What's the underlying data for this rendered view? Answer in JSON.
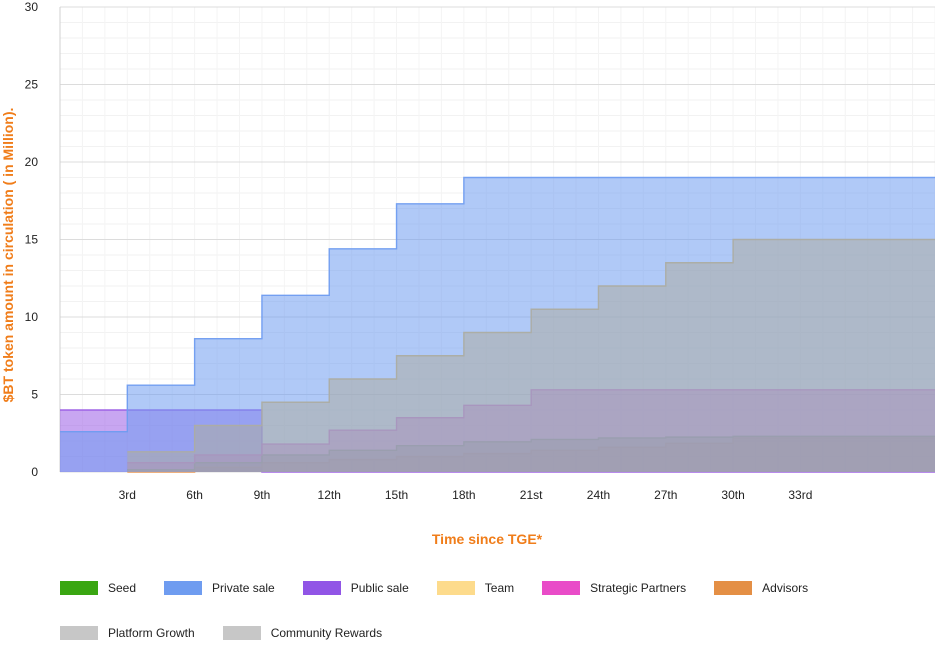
{
  "chart_data": {
    "type": "area",
    "xlabel": "Time since TGE*",
    "ylabel": "$BT token amount in circulation ( in Million).",
    "xlim": [
      0,
      39
    ],
    "ylim": [
      0,
      30
    ],
    "y_ticks": [
      0,
      5,
      10,
      15,
      20,
      25,
      30
    ],
    "x_tick_values": [
      3,
      6,
      9,
      12,
      15,
      18,
      21,
      24,
      27,
      30,
      33
    ],
    "x_tick_labels": [
      "3rd",
      "6th",
      "9th",
      "12th",
      "15th",
      "18th",
      "21st",
      "24th",
      "27th",
      "30th",
      "33rd"
    ],
    "grid": true,
    "series": [
      {
        "name": "Public sale",
        "color": "#9b5de5",
        "points": [
          [
            0,
            4.0
          ],
          [
            9,
            4.0
          ],
          [
            9,
            0
          ],
          [
            39,
            0
          ]
        ]
      },
      {
        "name": "Advisors",
        "color": "#e8914a",
        "points": [
          [
            3,
            0
          ],
          [
            6,
            0.3
          ],
          [
            9,
            0.6
          ],
          [
            12,
            0.8
          ],
          [
            15,
            1.0
          ],
          [
            18,
            1.2
          ],
          [
            21,
            1.4
          ],
          [
            24,
            1.6
          ],
          [
            27,
            1.85
          ],
          [
            30,
            2.2
          ],
          [
            39,
            2.2
          ]
        ]
      },
      {
        "name": "Seed",
        "color": "#40b020",
        "points": [
          [
            3,
            0.15
          ],
          [
            6,
            0.6
          ],
          [
            9,
            1.1
          ],
          [
            12,
            1.4
          ],
          [
            15,
            1.7
          ],
          [
            18,
            1.95
          ],
          [
            21,
            2.1
          ],
          [
            24,
            2.2
          ],
          [
            27,
            2.25
          ],
          [
            30,
            2.3
          ],
          [
            39,
            2.3
          ]
        ]
      },
      {
        "name": "Strategic Partners",
        "color": "#e34fc7",
        "points": [
          [
            3,
            0.6
          ],
          [
            6,
            1.1
          ],
          [
            9,
            1.8
          ],
          [
            12,
            2.7
          ],
          [
            15,
            3.5
          ],
          [
            18,
            4.3
          ],
          [
            21,
            5.3
          ],
          [
            24,
            5.3
          ],
          [
            39,
            5.3
          ]
        ]
      },
      {
        "name": "Team",
        "color": "#f5c046",
        "points": [
          [
            3,
            1.3
          ],
          [
            6,
            3.0
          ],
          [
            9,
            4.5
          ],
          [
            12,
            6.0
          ],
          [
            15,
            7.5
          ],
          [
            18,
            9.0
          ],
          [
            21,
            10.5
          ],
          [
            24,
            12.0
          ],
          [
            27,
            13.5
          ],
          [
            30,
            15.0
          ],
          [
            39,
            15.0
          ]
        ]
      },
      {
        "name": "Private sale",
        "color": "#6f9cf0",
        "points": [
          [
            0,
            2.6
          ],
          [
            3,
            2.6
          ],
          [
            3,
            5.6
          ],
          [
            6,
            8.6
          ],
          [
            9,
            11.4
          ],
          [
            12,
            14.4
          ],
          [
            15,
            17.3
          ],
          [
            18,
            19.0
          ],
          [
            39,
            19.0
          ]
        ]
      }
    ]
  },
  "legend": {
    "rows": [
      [
        {
          "label": "Seed",
          "color": "#3aa612"
        },
        {
          "label": "Private sale",
          "color": "#6f9cf0"
        },
        {
          "label": "Public sale",
          "color": "#9155e6"
        },
        {
          "label": "Team",
          "color": "#fddb8c"
        },
        {
          "label": "Strategic Partners",
          "color": "#e94cc8"
        },
        {
          "label": "Advisors",
          "color": "#e48f45"
        }
      ],
      [
        {
          "label": "Platform Growth",
          "color": "#c7c7c7"
        },
        {
          "label": "Community Rewards",
          "color": "#c7c7c7"
        }
      ]
    ]
  }
}
